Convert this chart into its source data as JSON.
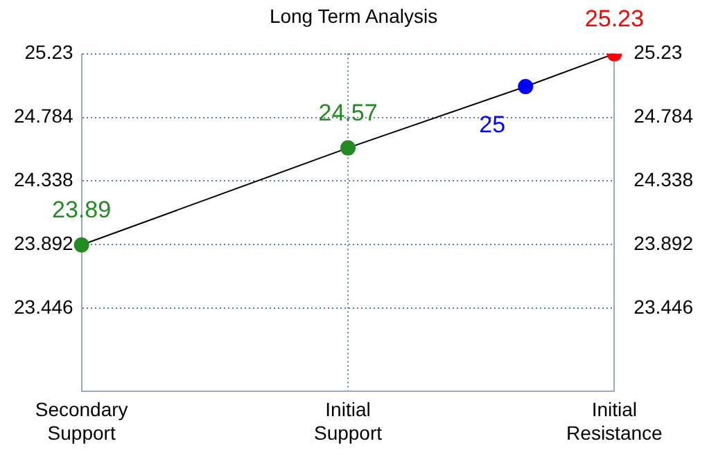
{
  "chart_data": {
    "type": "line",
    "title": "Long Term Analysis",
    "categories": [
      "Secondary Support",
      null,
      null,
      "Initial Support",
      null,
      null,
      "Initial Resistance"
    ],
    "series": [
      {
        "color": "#000000",
        "colors": [
          "#228b22",
          null,
          null,
          "#228b22",
          null,
          "#0000ff",
          "#ff0000"
        ],
        "values": [
          23.89,
          null,
          null,
          24.57,
          null,
          25,
          25.23
        ]
      }
    ],
    "data_labels": true,
    "ylim": [
      22.866,
      25.23
    ],
    "yticks": [
      23.446,
      23.892,
      24.338,
      24.784,
      25.23
    ],
    "y2lim": [
      22.866,
      25.23
    ],
    "y2ticks": [
      23.446,
      23.892,
      24.338,
      24.784,
      25.23
    ],
    "grid": true,
    "legend": false,
    "marker": "circle",
    "line_style": "solid"
  }
}
